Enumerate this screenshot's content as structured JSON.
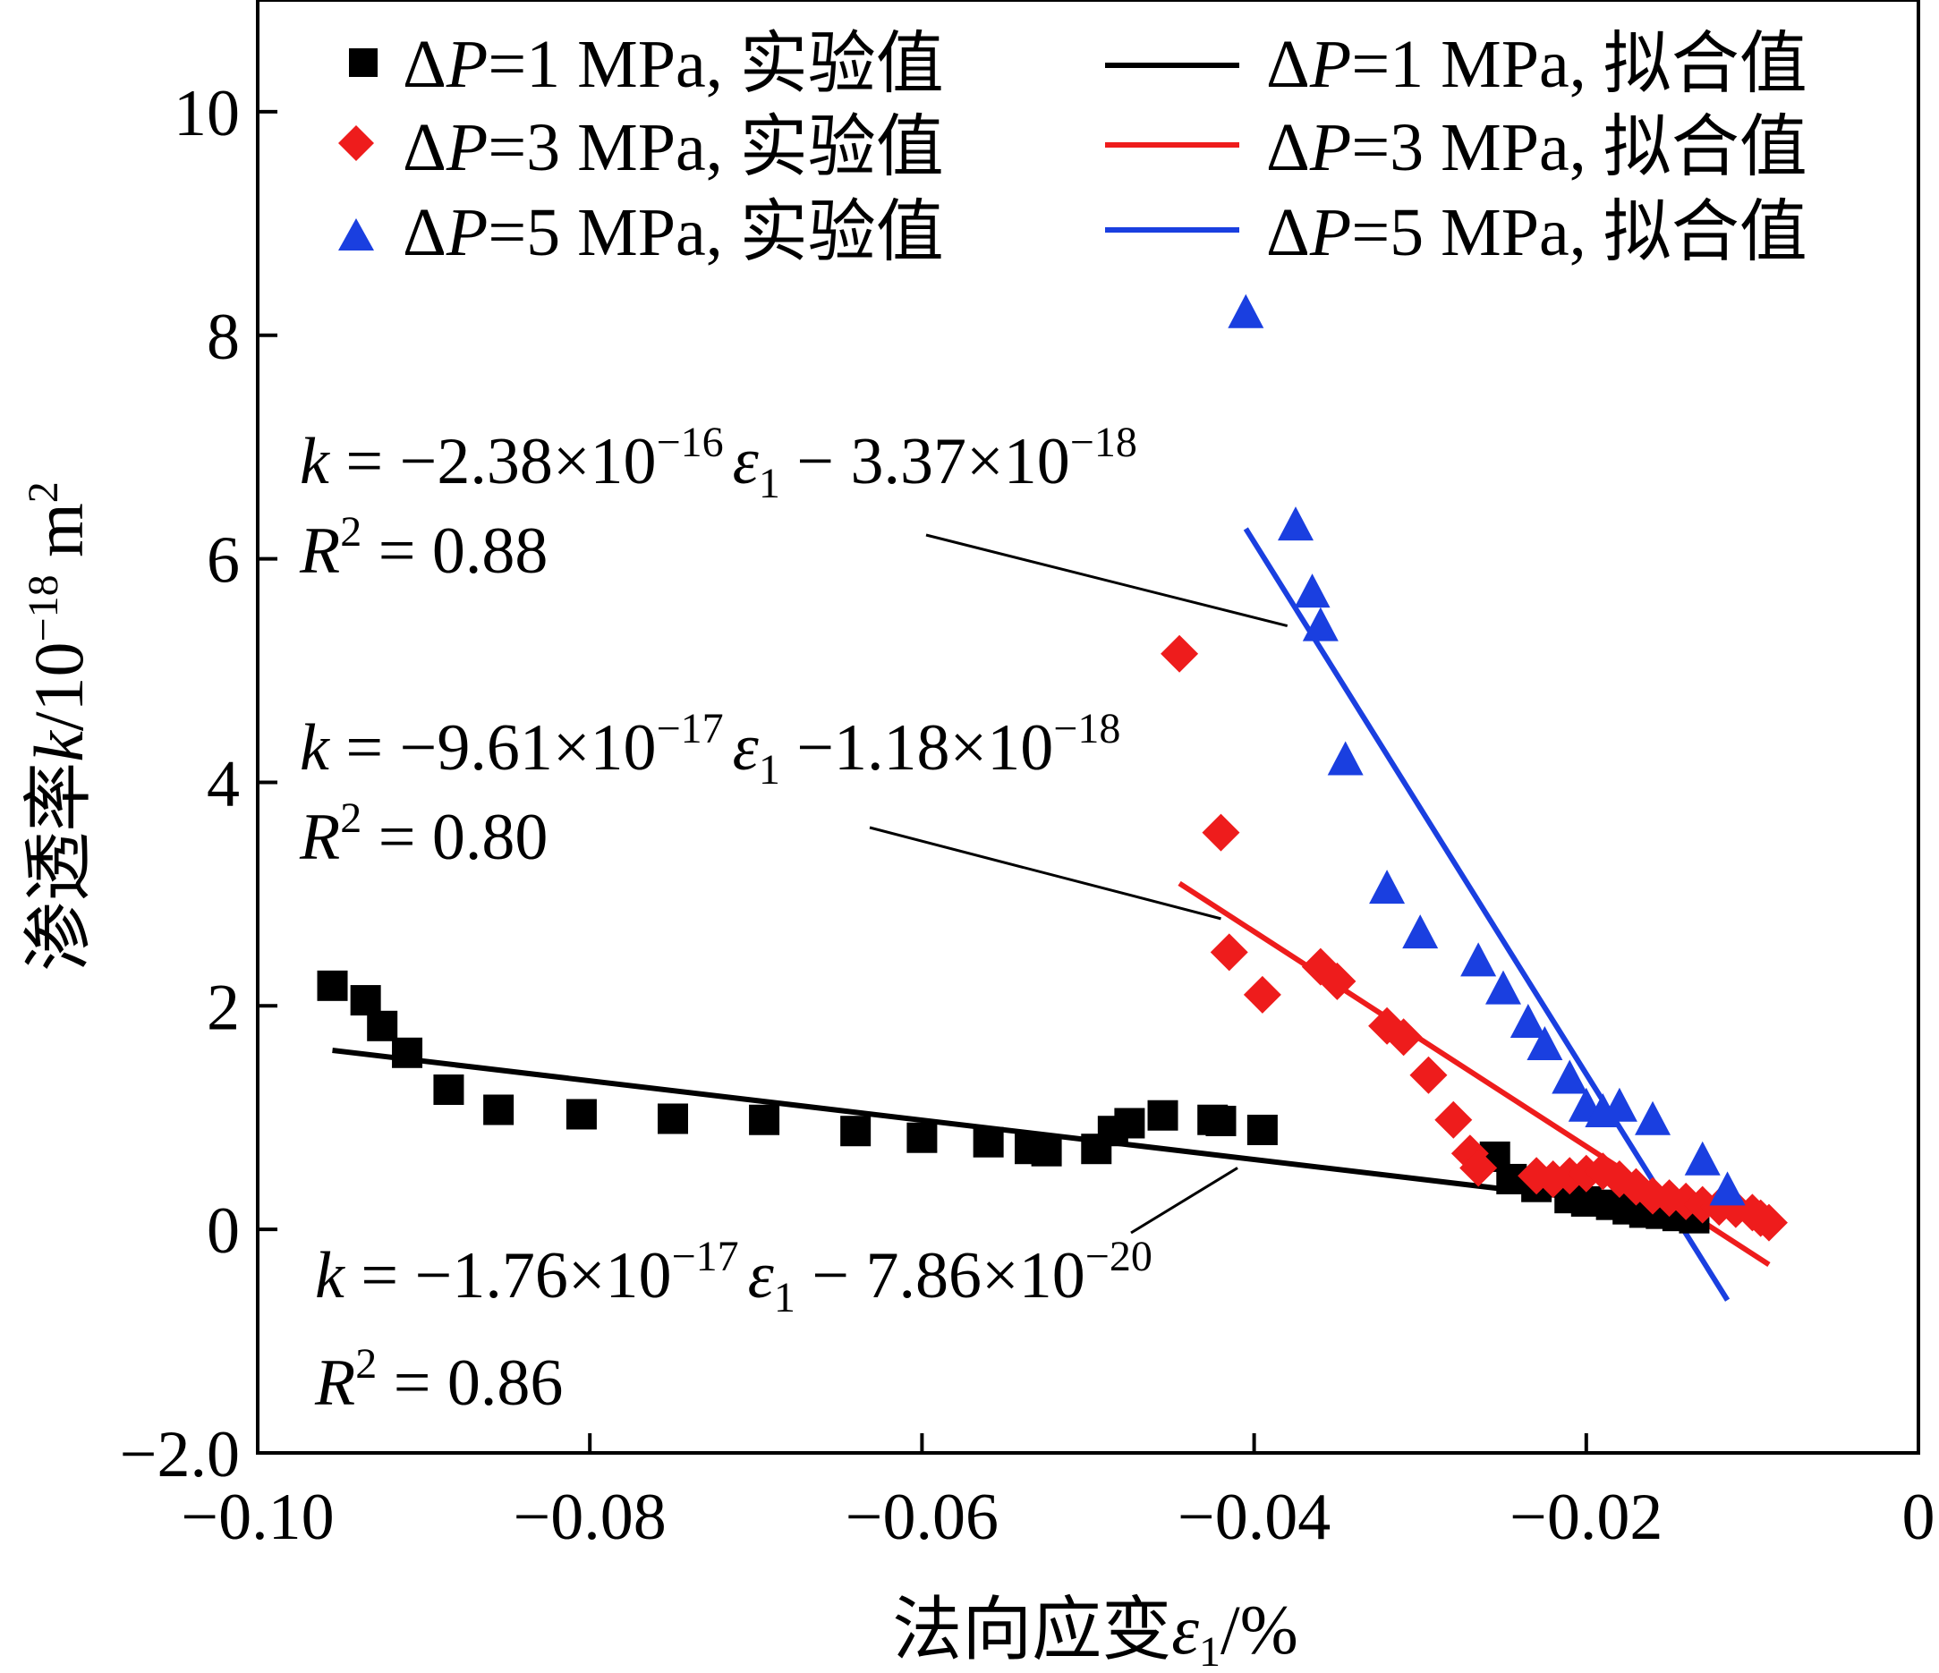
{
  "chart_data": {
    "type": "scatter",
    "xlabel": "法向应变ε1/%",
    "xlabel_parts": {
      "text": "法向应变",
      "symbol": "ε",
      "sub": "1",
      "unit": "/%"
    },
    "ylabel": "渗透率k/10^-18 m^2",
    "ylabel_parts": {
      "text": "渗透率",
      "symbol": "k",
      "unit": "/10",
      "exp": "−18",
      "unit2": " m",
      "exp2": "2"
    },
    "xlim": [
      -0.1,
      0
    ],
    "ylim": [
      -2.0,
      11
    ],
    "x_ticks": [
      -0.1,
      -0.08,
      -0.06,
      -0.04,
      -0.02,
      0
    ],
    "x_tick_labels": [
      "−0.10",
      "−0.08",
      "−0.06",
      "−0.04",
      "−0.02",
      "0"
    ],
    "y_ticks": [
      -2,
      0,
      2,
      4,
      6,
      8,
      10
    ],
    "y_tick_labels": [
      "−2.0",
      "0",
      "2",
      "4",
      "6",
      "8",
      "10"
    ],
    "legend_position": "top",
    "series": [
      {
        "name": "ΔP=1 MPa, 实验值",
        "label_parts": {
          "delta": "Δ",
          "p": "P",
          "rest": "=1 MPa, 实验值"
        },
        "marker": "square",
        "color": "#000000",
        "x": [
          -0.0955,
          -0.0935,
          -0.0925,
          -0.091,
          -0.0885,
          -0.0855,
          -0.0805,
          -0.075,
          -0.0695,
          -0.064,
          -0.06,
          -0.056,
          -0.0535,
          -0.0525,
          -0.0495,
          -0.0485,
          -0.0475,
          -0.0455,
          -0.0425,
          -0.042,
          -0.0395,
          -0.0255,
          -0.0245,
          -0.023,
          -0.021,
          -0.02,
          -0.0185,
          -0.0175,
          -0.0165,
          -0.0155,
          -0.0145,
          -0.0135
        ],
        "y": [
          2.18,
          2.05,
          1.82,
          1.58,
          1.25,
          1.07,
          1.03,
          0.99,
          0.98,
          0.88,
          0.82,
          0.78,
          0.72,
          0.7,
          0.72,
          0.88,
          0.95,
          1.02,
          0.98,
          0.97,
          0.89,
          0.65,
          0.45,
          0.38,
          0.28,
          0.25,
          0.22,
          0.18,
          0.15,
          0.14,
          0.12,
          0.1
        ]
      },
      {
        "name": "ΔP=3 MPa, 实验值",
        "label_parts": {
          "delta": "Δ",
          "p": "P",
          "rest": "=3 MPa, 实验值"
        },
        "marker": "diamond",
        "color": "#ee1c1c",
        "x": [
          -0.0445,
          -0.042,
          -0.0415,
          -0.0395,
          -0.036,
          -0.035,
          -0.032,
          -0.031,
          -0.0295,
          -0.028,
          -0.027,
          -0.0265,
          -0.023,
          -0.022,
          -0.021,
          -0.02,
          -0.019,
          -0.018,
          -0.017,
          -0.016,
          -0.015,
          -0.014,
          -0.013,
          -0.012,
          -0.011,
          -0.01,
          -0.0095,
          -0.009
        ],
        "y": [
          5.15,
          3.55,
          2.48,
          2.1,
          2.35,
          2.22,
          1.82,
          1.72,
          1.38,
          0.98,
          0.68,
          0.55,
          0.48,
          0.45,
          0.48,
          0.5,
          0.52,
          0.45,
          0.38,
          0.3,
          0.28,
          0.25,
          0.22,
          0.2,
          0.18,
          0.15,
          0.1,
          0.06
        ]
      },
      {
        "name": "ΔP=5 MPa, 实验值",
        "label_parts": {
          "delta": "Δ",
          "p": "P",
          "rest": "=5 MPa, 实验值"
        },
        "marker": "triangle",
        "color": "#1a3fe0",
        "x": [
          -0.0405,
          -0.0375,
          -0.0365,
          -0.036,
          -0.0345,
          -0.032,
          -0.03,
          -0.0265,
          -0.025,
          -0.0235,
          -0.0225,
          -0.021,
          -0.02,
          -0.019,
          -0.018,
          -0.016,
          -0.013,
          -0.0115
        ],
        "y": [
          8.2,
          6.3,
          5.7,
          5.4,
          4.2,
          3.05,
          2.65,
          2.4,
          2.15,
          1.85,
          1.65,
          1.35,
          1.1,
          1.05,
          1.1,
          0.98,
          0.62,
          0.35
        ]
      }
    ],
    "fits": [
      {
        "name": "ΔP=1 MPa, 拟合值",
        "label_parts": {
          "delta": "Δ",
          "p": "P",
          "rest": "=1 MPa, 拟合值"
        },
        "color": "#000000",
        "slope": -17.6,
        "intercept": -0.0786,
        "x_range": [
          -0.0955,
          -0.01
        ],
        "equation": {
          "k": "k",
          "eq": " = −1.76×10",
          "exp1": "−17",
          "eps": "ε",
          "sub": "1",
          "mid": " − 7.86×10",
          "exp2": "−20"
        },
        "r2": {
          "r": "R",
          "exp": "2",
          "val": " = 0.86"
        }
      },
      {
        "name": "ΔP=3 MPa, 拟合值",
        "label_parts": {
          "delta": "Δ",
          "p": "P",
          "rest": "=3 MPa, 拟合值"
        },
        "color": "#ee1c1c",
        "slope": -96.1,
        "intercept": -1.18,
        "x_range": [
          -0.0445,
          -0.009
        ],
        "equation": {
          "k": "k",
          "eq": " = −9.61×10",
          "exp1": "−17",
          "eps": "ε",
          "sub": "1",
          "mid": " −1.18×10",
          "exp2": "−18"
        },
        "r2": {
          "r": "R",
          "exp": "2",
          "val": " = 0.80"
        }
      },
      {
        "name": "ΔP=5 MPa, 拟合值",
        "label_parts": {
          "delta": "Δ",
          "p": "P",
          "rest": "=5 MPa, 拟合值"
        },
        "color": "#1a3fe0",
        "slope": -238,
        "intercept": -3.37,
        "x_range": [
          -0.0405,
          -0.0115
        ],
        "equation": {
          "k": "k",
          "eq": " = −2.38×10",
          "exp1": "−16",
          "eps": "ε",
          "sub": "1",
          "mid": " − 3.37×10",
          "exp2": "−18"
        },
        "r2": {
          "r": "R",
          "exp": "2",
          "val": " = 0.88"
        }
      }
    ],
    "annotations": [
      {
        "target_fit": "ΔP=5 MPa, 拟合值",
        "point": [
          -0.038,
          5.4
        ]
      },
      {
        "target_fit": "ΔP=3 MPa, 拟合值",
        "point": [
          -0.042,
          2.78
        ]
      },
      {
        "target_fit": "ΔP=1 MPa, 拟合值",
        "point": [
          -0.041,
          0.55
        ]
      }
    ]
  }
}
